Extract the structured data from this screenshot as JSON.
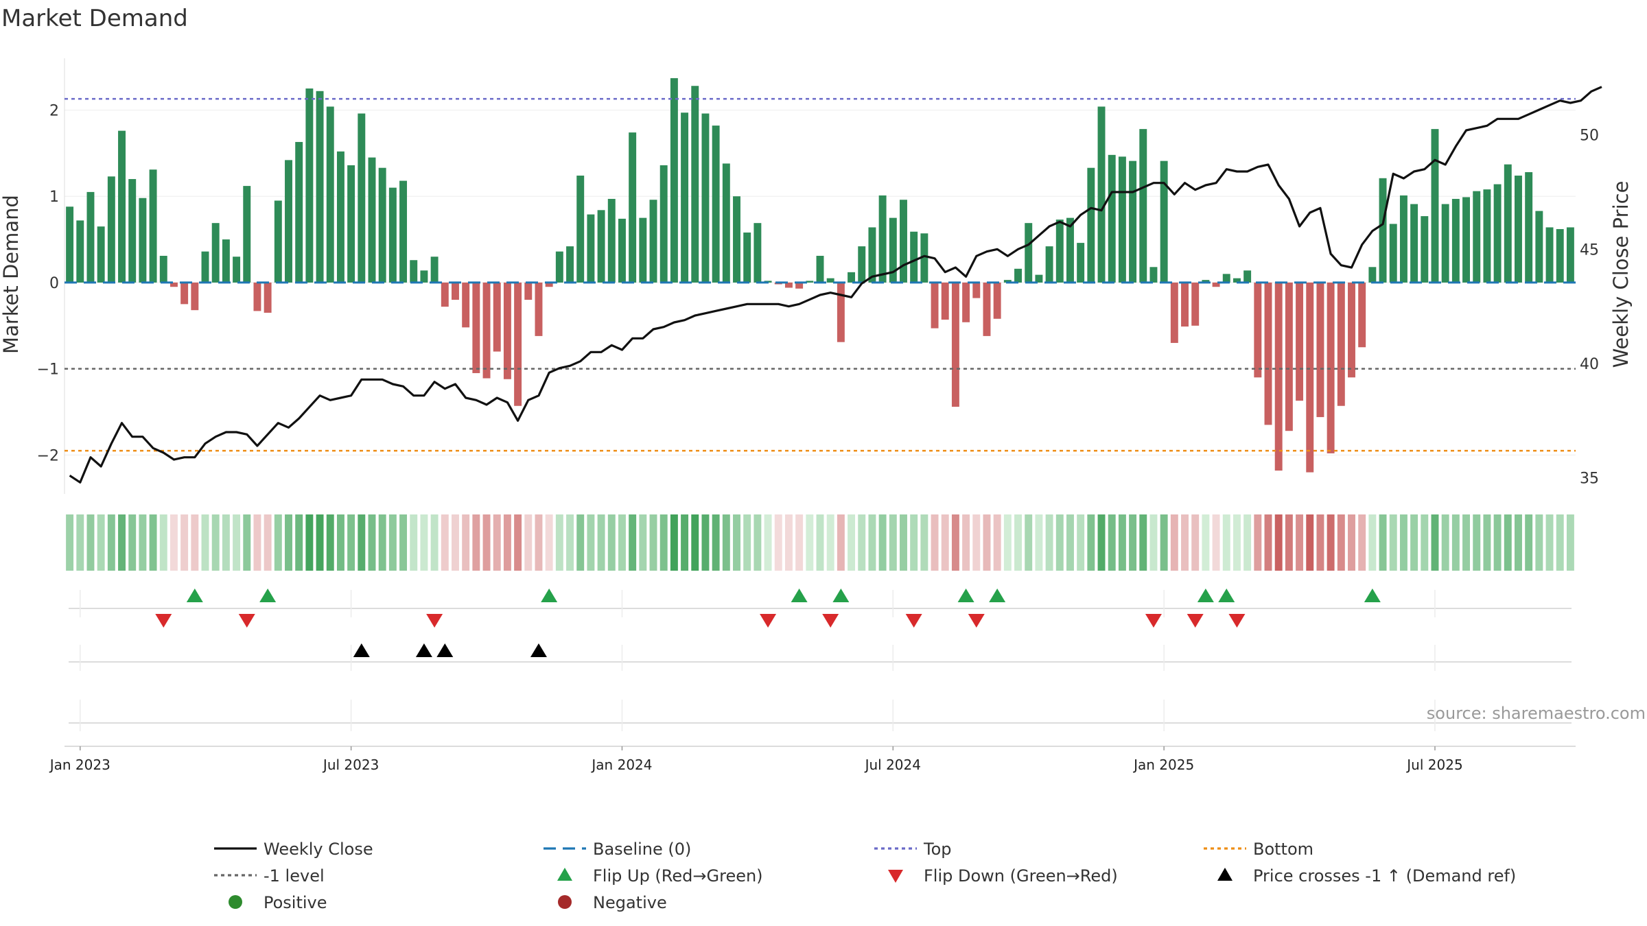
{
  "chart_data": {
    "type": "bar",
    "title": "Market Demand",
    "ylabel": "Market Demand",
    "y2label": "Weekly Close Price",
    "ylim": [
      -2.45,
      2.6
    ],
    "y2lim": [
      34.3,
      53.35
    ],
    "yticks": [
      "2",
      "1",
      "0",
      "−1",
      "−2"
    ],
    "yticks_values": [
      2,
      1,
      0,
      -1,
      -2
    ],
    "y2ticks": [
      "50",
      "45",
      "40",
      "35"
    ],
    "y2ticks_values": [
      50,
      45,
      40,
      35
    ],
    "x_labels": [
      "Jan 2023",
      "Jul 2023",
      "Jan 2024",
      "Jul 2024",
      "Jan 2025",
      "Jul 2025"
    ],
    "x_label_weeks": [
      1.5,
      27.5,
      53.5,
      79.5,
      105.5,
      131.5
    ],
    "top_level": 2.13,
    "bottom_level": -1.95,
    "minus1_level": -1,
    "demand": [
      0.88,
      0.72,
      1.05,
      0.65,
      1.23,
      1.76,
      1.2,
      0.98,
      1.31,
      0.31,
      -0.05,
      -0.25,
      -0.32,
      0.36,
      0.69,
      0.5,
      0.3,
      1.12,
      -0.33,
      -0.35,
      0.95,
      1.42,
      1.63,
      2.25,
      2.22,
      2.04,
      1.52,
      1.36,
      1.96,
      1.45,
      1.33,
      1.1,
      1.18,
      0.26,
      0.14,
      0.3,
      -0.28,
      -0.2,
      -0.52,
      -1.05,
      -1.11,
      -0.8,
      -1.12,
      -1.43,
      -0.2,
      -0.62,
      -0.05,
      0.36,
      0.42,
      1.24,
      0.79,
      0.84,
      0.97,
      0.74,
      1.74,
      0.75,
      0.96,
      1.36,
      2.37,
      1.97,
      2.28,
      1.96,
      1.82,
      1.38,
      1.0,
      0.58,
      0.69,
      0.02,
      -0.02,
      -0.06,
      -0.07,
      0.02,
      0.31,
      0.05,
      -0.69,
      0.12,
      0.42,
      0.64,
      1.01,
      0.75,
      0.96,
      0.59,
      0.57,
      -0.53,
      -0.43,
      -1.44,
      -0.46,
      -0.18,
      -0.62,
      -0.42,
      0.03,
      0.16,
      0.69,
      0.09,
      0.42,
      0.73,
      0.75,
      0.46,
      1.33,
      2.04,
      1.48,
      1.46,
      1.41,
      1.78,
      0.18,
      1.41,
      -0.7,
      -0.51,
      -0.5,
      0.03,
      -0.05,
      0.1,
      0.05,
      0.14,
      -1.1,
      -1.65,
      -2.18,
      -1.72,
      -1.37,
      -2.2,
      -1.56,
      -1.98,
      -1.43,
      -1.1,
      -0.75,
      0.18,
      1.21,
      0.68,
      1.01,
      0.91,
      0.77,
      1.78,
      0.91,
      0.97,
      0.99,
      1.06,
      1.08,
      1.14,
      1.37,
      1.24,
      1.28,
      0.83,
      0.64,
      0.62,
      0.64
    ],
    "price": [
      35.1,
      34.8,
      35.9,
      35.5,
      36.5,
      37.4,
      36.8,
      36.8,
      36.3,
      36.1,
      35.8,
      35.9,
      35.9,
      36.5,
      36.8,
      37.0,
      37.0,
      36.9,
      36.4,
      36.9,
      37.4,
      37.2,
      37.6,
      38.1,
      38.6,
      38.4,
      38.5,
      38.6,
      39.3,
      39.3,
      39.3,
      39.1,
      39.0,
      38.6,
      38.6,
      39.2,
      38.9,
      39.1,
      38.5,
      38.4,
      38.2,
      38.5,
      38.3,
      37.5,
      38.4,
      38.6,
      39.6,
      39.8,
      39.9,
      40.1,
      40.5,
      40.5,
      40.8,
      40.6,
      41.1,
      41.1,
      41.5,
      41.6,
      41.8,
      41.9,
      42.1,
      42.2,
      42.3,
      42.4,
      42.5,
      42.6,
      42.6,
      42.6,
      42.6,
      42.5,
      42.6,
      42.8,
      43.0,
      43.1,
      43.0,
      42.9,
      43.5,
      43.8,
      43.9,
      44.0,
      44.3,
      44.5,
      44.7,
      44.6,
      44.0,
      44.2,
      43.8,
      44.7,
      44.9,
      45.0,
      44.7,
      45.0,
      45.2,
      45.6,
      46.0,
      46.2,
      46.0,
      46.5,
      46.8,
      46.7,
      47.5,
      47.5,
      47.5,
      47.7,
      47.9,
      47.9,
      47.4,
      47.9,
      47.6,
      47.8,
      47.9,
      48.5,
      48.4,
      48.4,
      48.6,
      48.7,
      47.8,
      47.2,
      46.0,
      46.6,
      46.8,
      44.8,
      44.3,
      44.2,
      45.2,
      45.8,
      46.1,
      48.3,
      48.1,
      48.4,
      48.5,
      48.9,
      48.7,
      49.5,
      50.2,
      50.3,
      50.4,
      50.7,
      50.7,
      50.7,
      50.9,
      51.1,
      51.3,
      51.5,
      51.4,
      51.5,
      51.9,
      52.1
    ],
    "flip_up_weeks": [
      12,
      19,
      46,
      70,
      74,
      86,
      89,
      109,
      111,
      125
    ],
    "flip_down_weeks": [
      9,
      17,
      35,
      67,
      73,
      81,
      87,
      104,
      108,
      112
    ],
    "price_cross_weeks": [
      28,
      34,
      36,
      45
    ],
    "colors": {
      "green_bar": "#2e8b57",
      "red_bar": "#c86060",
      "price_line": "#111111",
      "baseline": "#1f77b4",
      "top": "#6a6ac8",
      "bottom": "#ee8e16",
      "minus1": "#666666",
      "flip_up": "#25a14a",
      "flip_down": "#d8292b",
      "cross": "#000000",
      "positive": "#2e8b2e",
      "negative": "#a52a2a"
    },
    "legend": [
      {
        "key": "weekly-close",
        "label": "Weekly Close"
      },
      {
        "key": "baseline",
        "label": "Baseline (0)"
      },
      {
        "key": "top",
        "label": "Top"
      },
      {
        "key": "bottom",
        "label": "Bottom"
      },
      {
        "key": "minus1",
        "label": "-1 level"
      },
      {
        "key": "flip-up",
        "label": "Flip Up (Red→Green)"
      },
      {
        "key": "flip-down",
        "label": "Flip Down (Green→Red)"
      },
      {
        "key": "price-cross",
        "label": "Price crosses -1 ↑ (Demand ref)"
      },
      {
        "key": "positive",
        "label": "Positive"
      },
      {
        "key": "negative",
        "label": "Negative"
      }
    ],
    "source": "source: sharemaestro.com"
  }
}
